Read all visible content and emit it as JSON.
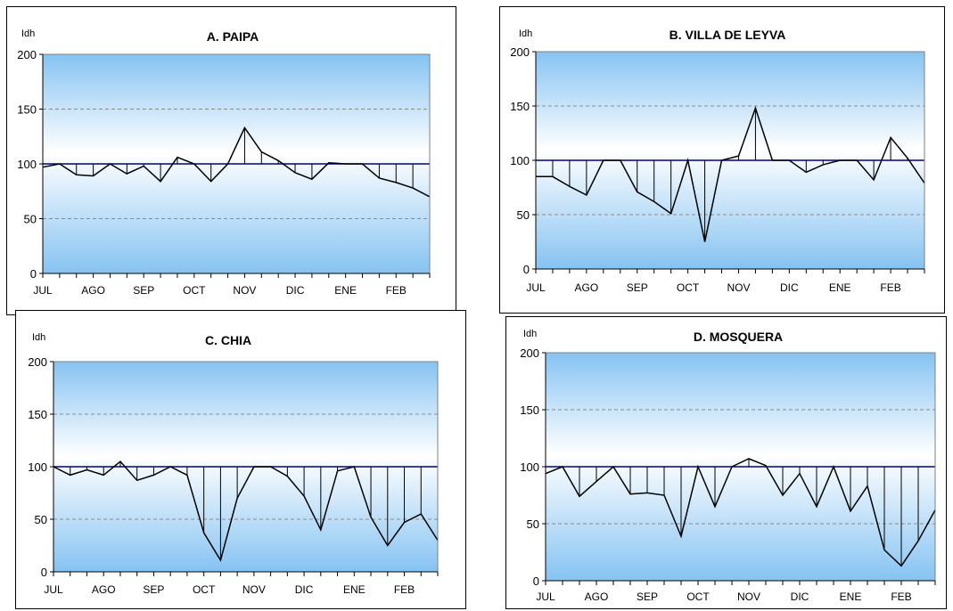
{
  "chart_data": [
    {
      "type": "line",
      "title": "A. PAIPA",
      "ylabel": "Idh",
      "ylim": [
        0,
        200
      ],
      "yticks": [
        0,
        50,
        100,
        150,
        200
      ],
      "x_tick_labels": [
        "JUL",
        "AGO",
        "SEP",
        "OCT",
        "NOV",
        "DIC",
        "ENE",
        "FEB"
      ],
      "reference_line": 100,
      "grid": "dashed at 50 and 150",
      "colors": {
        "series": "#000000",
        "reference": "#000080",
        "background_edge": "#86c3f2",
        "background_center": "#ffffff"
      },
      "series": [
        {
          "values": [
            97,
            100,
            90,
            89,
            100,
            91,
            98,
            84,
            106,
            100,
            84,
            100,
            133,
            111,
            103,
            92,
            86,
            101,
            100,
            100,
            87,
            83,
            78,
            70
          ]
        }
      ]
    },
    {
      "type": "line",
      "title": "B. VILLA DE LEYVA",
      "ylabel": "Idh",
      "ylim": [
        0,
        200
      ],
      "yticks": [
        0,
        50,
        100,
        150,
        200
      ],
      "x_tick_labels": [
        "JUL",
        "AGO",
        "SEP",
        "OCT",
        "NOV",
        "DIC",
        "ENE",
        "FEB"
      ],
      "reference_line": 100,
      "grid": "dashed at 50 and 150",
      "colors": {
        "series": "#000000",
        "reference": "#000080",
        "background_edge": "#86c3f2",
        "background_center": "#ffffff"
      },
      "series": [
        {
          "values": [
            85,
            85,
            76,
            68,
            100,
            100,
            71,
            62,
            51,
            100,
            25,
            100,
            104,
            148,
            100,
            100,
            89,
            96,
            100,
            100,
            82,
            121,
            102,
            79
          ]
        }
      ]
    },
    {
      "type": "line",
      "title": "C. CHIA",
      "ylabel": "Idh",
      "ylim": [
        0,
        200
      ],
      "yticks": [
        0,
        50,
        100,
        150,
        200
      ],
      "x_tick_labels": [
        "JUL",
        "AGO",
        "SEP",
        "OCT",
        "NOV",
        "DIC",
        "ENE",
        "FEB"
      ],
      "reference_line": 100,
      "grid": "dashed at 50 and 150",
      "colors": {
        "series": "#000000",
        "reference": "#000080",
        "background_edge": "#86c3f2",
        "background_center": "#ffffff"
      },
      "series": [
        {
          "values": [
            100,
            92,
            97,
            92,
            105,
            87,
            92,
            100,
            92,
            37,
            11,
            70,
            100,
            100,
            91,
            72,
            40,
            96,
            100,
            52,
            25,
            47,
            55,
            30
          ]
        }
      ]
    },
    {
      "type": "line",
      "title": "D. MOSQUERA",
      "ylabel": "Idh",
      "ylim": [
        0,
        200
      ],
      "yticks": [
        0,
        50,
        100,
        150,
        200
      ],
      "x_tick_labels": [
        "JUL",
        "AGO",
        "SEP",
        "OCT",
        "NOV",
        "DIC",
        "ENE",
        "FEB"
      ],
      "reference_line": 100,
      "grid": "dashed at 50 and 150",
      "colors": {
        "series": "#000000",
        "reference": "#000080",
        "background_edge": "#86c3f2",
        "background_center": "#ffffff"
      },
      "series": [
        {
          "values": [
            94,
            100,
            74,
            87,
            100,
            76,
            77,
            75,
            39,
            100,
            65,
            100,
            107,
            101,
            75,
            94,
            65,
            100,
            61,
            83,
            27,
            13,
            35,
            62
          ]
        }
      ]
    }
  ]
}
